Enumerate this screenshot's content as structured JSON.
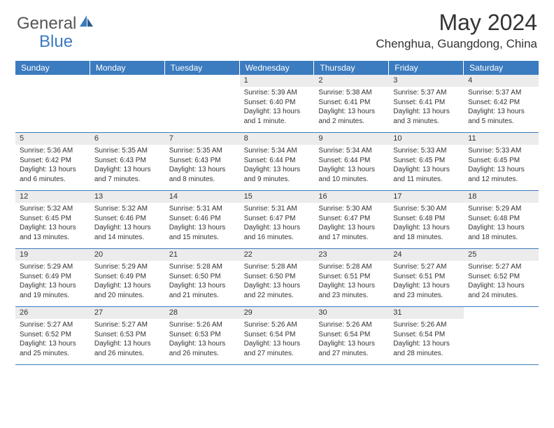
{
  "logo": {
    "part1": "General",
    "part2": "Blue",
    "icon_color": "#3b7bbf",
    "text1_color": "#555555",
    "text2_color": "#3b7bbf"
  },
  "title": "May 2024",
  "location": "Chenghua, Guangdong, China",
  "header_bg": "#3b7bbf",
  "header_text_color": "#ffffff",
  "daynum_bg": "#ececec",
  "divider_color": "#3b7bbf",
  "text_color": "#333333",
  "body_fontsize": 10,
  "daynum_fontsize": 11,
  "header_fontsize": 12,
  "day_names": [
    "Sunday",
    "Monday",
    "Tuesday",
    "Wednesday",
    "Thursday",
    "Friday",
    "Saturday"
  ],
  "weeks": [
    [
      {
        "day": "",
        "sunrise": "",
        "sunset": "",
        "daylight": ""
      },
      {
        "day": "",
        "sunrise": "",
        "sunset": "",
        "daylight": ""
      },
      {
        "day": "",
        "sunrise": "",
        "sunset": "",
        "daylight": ""
      },
      {
        "day": "1",
        "sunrise": "Sunrise: 5:39 AM",
        "sunset": "Sunset: 6:40 PM",
        "daylight": "Daylight: 13 hours and 1 minute."
      },
      {
        "day": "2",
        "sunrise": "Sunrise: 5:38 AM",
        "sunset": "Sunset: 6:41 PM",
        "daylight": "Daylight: 13 hours and 2 minutes."
      },
      {
        "day": "3",
        "sunrise": "Sunrise: 5:37 AM",
        "sunset": "Sunset: 6:41 PM",
        "daylight": "Daylight: 13 hours and 3 minutes."
      },
      {
        "day": "4",
        "sunrise": "Sunrise: 5:37 AM",
        "sunset": "Sunset: 6:42 PM",
        "daylight": "Daylight: 13 hours and 5 minutes."
      }
    ],
    [
      {
        "day": "5",
        "sunrise": "Sunrise: 5:36 AM",
        "sunset": "Sunset: 6:42 PM",
        "daylight": "Daylight: 13 hours and 6 minutes."
      },
      {
        "day": "6",
        "sunrise": "Sunrise: 5:35 AM",
        "sunset": "Sunset: 6:43 PM",
        "daylight": "Daylight: 13 hours and 7 minutes."
      },
      {
        "day": "7",
        "sunrise": "Sunrise: 5:35 AM",
        "sunset": "Sunset: 6:43 PM",
        "daylight": "Daylight: 13 hours and 8 minutes."
      },
      {
        "day": "8",
        "sunrise": "Sunrise: 5:34 AM",
        "sunset": "Sunset: 6:44 PM",
        "daylight": "Daylight: 13 hours and 9 minutes."
      },
      {
        "day": "9",
        "sunrise": "Sunrise: 5:34 AM",
        "sunset": "Sunset: 6:44 PM",
        "daylight": "Daylight: 13 hours and 10 minutes."
      },
      {
        "day": "10",
        "sunrise": "Sunrise: 5:33 AM",
        "sunset": "Sunset: 6:45 PM",
        "daylight": "Daylight: 13 hours and 11 minutes."
      },
      {
        "day": "11",
        "sunrise": "Sunrise: 5:33 AM",
        "sunset": "Sunset: 6:45 PM",
        "daylight": "Daylight: 13 hours and 12 minutes."
      }
    ],
    [
      {
        "day": "12",
        "sunrise": "Sunrise: 5:32 AM",
        "sunset": "Sunset: 6:45 PM",
        "daylight": "Daylight: 13 hours and 13 minutes."
      },
      {
        "day": "13",
        "sunrise": "Sunrise: 5:32 AM",
        "sunset": "Sunset: 6:46 PM",
        "daylight": "Daylight: 13 hours and 14 minutes."
      },
      {
        "day": "14",
        "sunrise": "Sunrise: 5:31 AM",
        "sunset": "Sunset: 6:46 PM",
        "daylight": "Daylight: 13 hours and 15 minutes."
      },
      {
        "day": "15",
        "sunrise": "Sunrise: 5:31 AM",
        "sunset": "Sunset: 6:47 PM",
        "daylight": "Daylight: 13 hours and 16 minutes."
      },
      {
        "day": "16",
        "sunrise": "Sunrise: 5:30 AM",
        "sunset": "Sunset: 6:47 PM",
        "daylight": "Daylight: 13 hours and 17 minutes."
      },
      {
        "day": "17",
        "sunrise": "Sunrise: 5:30 AM",
        "sunset": "Sunset: 6:48 PM",
        "daylight": "Daylight: 13 hours and 18 minutes."
      },
      {
        "day": "18",
        "sunrise": "Sunrise: 5:29 AM",
        "sunset": "Sunset: 6:48 PM",
        "daylight": "Daylight: 13 hours and 18 minutes."
      }
    ],
    [
      {
        "day": "19",
        "sunrise": "Sunrise: 5:29 AM",
        "sunset": "Sunset: 6:49 PM",
        "daylight": "Daylight: 13 hours and 19 minutes."
      },
      {
        "day": "20",
        "sunrise": "Sunrise: 5:29 AM",
        "sunset": "Sunset: 6:49 PM",
        "daylight": "Daylight: 13 hours and 20 minutes."
      },
      {
        "day": "21",
        "sunrise": "Sunrise: 5:28 AM",
        "sunset": "Sunset: 6:50 PM",
        "daylight": "Daylight: 13 hours and 21 minutes."
      },
      {
        "day": "22",
        "sunrise": "Sunrise: 5:28 AM",
        "sunset": "Sunset: 6:50 PM",
        "daylight": "Daylight: 13 hours and 22 minutes."
      },
      {
        "day": "23",
        "sunrise": "Sunrise: 5:28 AM",
        "sunset": "Sunset: 6:51 PM",
        "daylight": "Daylight: 13 hours and 23 minutes."
      },
      {
        "day": "24",
        "sunrise": "Sunrise: 5:27 AM",
        "sunset": "Sunset: 6:51 PM",
        "daylight": "Daylight: 13 hours and 23 minutes."
      },
      {
        "day": "25",
        "sunrise": "Sunrise: 5:27 AM",
        "sunset": "Sunset: 6:52 PM",
        "daylight": "Daylight: 13 hours and 24 minutes."
      }
    ],
    [
      {
        "day": "26",
        "sunrise": "Sunrise: 5:27 AM",
        "sunset": "Sunset: 6:52 PM",
        "daylight": "Daylight: 13 hours and 25 minutes."
      },
      {
        "day": "27",
        "sunrise": "Sunrise: 5:27 AM",
        "sunset": "Sunset: 6:53 PM",
        "daylight": "Daylight: 13 hours and 26 minutes."
      },
      {
        "day": "28",
        "sunrise": "Sunrise: 5:26 AM",
        "sunset": "Sunset: 6:53 PM",
        "daylight": "Daylight: 13 hours and 26 minutes."
      },
      {
        "day": "29",
        "sunrise": "Sunrise: 5:26 AM",
        "sunset": "Sunset: 6:54 PM",
        "daylight": "Daylight: 13 hours and 27 minutes."
      },
      {
        "day": "30",
        "sunrise": "Sunrise: 5:26 AM",
        "sunset": "Sunset: 6:54 PM",
        "daylight": "Daylight: 13 hours and 27 minutes."
      },
      {
        "day": "31",
        "sunrise": "Sunrise: 5:26 AM",
        "sunset": "Sunset: 6:54 PM",
        "daylight": "Daylight: 13 hours and 28 minutes."
      },
      {
        "day": "",
        "sunrise": "",
        "sunset": "",
        "daylight": ""
      }
    ]
  ]
}
